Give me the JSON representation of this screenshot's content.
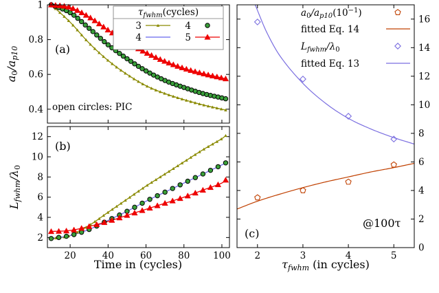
{
  "colors": {
    "olive": "#8a8a00",
    "blue": "#6666ee",
    "red": "#ee0000",
    "green_fill": "#3aa03a",
    "orange": "#c04000",
    "light_blue": "#7a6ee0"
  },
  "chart_data": [
    {
      "type": "line",
      "panel_label": "(a)",
      "xlabel": "",
      "ylabel": "a_0/a_p10",
      "ylabel_main": "a",
      "ylabel_sub1": "0",
      "ylabel_slash": "/a",
      "ylabel_sub2": "p10",
      "xlim": [
        8,
        104
      ],
      "ylim": [
        0.32,
        1.0
      ],
      "yticks": [
        "0.4",
        "0.6",
        "0.8",
        "1"
      ],
      "yticks_values": [
        0.4,
        0.6,
        0.8,
        1.0
      ],
      "annotation": "open circles: PIC",
      "legend_title": "τ",
      "legend_title_sub": "fwhm",
      "legend_title_rest": "(cycles)",
      "legend_position": "top-right",
      "series": [
        {
          "name": "3",
          "color": "olive",
          "marker": "triangle-small",
          "x": [
            10,
            20,
            30,
            40,
            50,
            60,
            70,
            80,
            90,
            100,
            102
          ],
          "y": [
            1.0,
            0.9,
            0.78,
            0.68,
            0.6,
            0.535,
            0.49,
            0.455,
            0.425,
            0.4,
            0.395
          ]
        },
        {
          "name": "4",
          "color": "blue",
          "marker": "none",
          "x": [
            10,
            20,
            30,
            40,
            50,
            60,
            70,
            80,
            90,
            100,
            102
          ],
          "y": [
            1.0,
            0.955,
            0.865,
            0.77,
            0.69,
            0.62,
            0.565,
            0.525,
            0.49,
            0.465,
            0.46
          ]
        },
        {
          "name": "4",
          "color": "green_fill",
          "marker": "circle",
          "x": [
            10,
            20,
            30,
            40,
            50,
            60,
            70,
            80,
            90,
            100,
            102
          ],
          "y": [
            1.0,
            0.955,
            0.865,
            0.77,
            0.69,
            0.62,
            0.565,
            0.525,
            0.49,
            0.465,
            0.46
          ]
        },
        {
          "name": "5",
          "color": "red",
          "marker": "triangle",
          "x": [
            10,
            20,
            30,
            40,
            50,
            60,
            70,
            80,
            90,
            100,
            102
          ],
          "y": [
            1.0,
            0.985,
            0.93,
            0.855,
            0.785,
            0.725,
            0.675,
            0.635,
            0.605,
            0.58,
            0.575
          ]
        }
      ]
    },
    {
      "type": "line",
      "panel_label": "(b)",
      "xlabel": "Time in (cycles)",
      "ylabel": "L_fwhm/λ_0",
      "ylabel_main": "L",
      "ylabel_sub1": "fwhm",
      "ylabel_slash": "/λ",
      "ylabel_sub2": "0",
      "xlim": [
        8,
        104
      ],
      "ylim": [
        1,
        13
      ],
      "xticks": [
        "20",
        "40",
        "60",
        "80",
        "100"
      ],
      "xticks_values": [
        20,
        40,
        60,
        80,
        100
      ],
      "yticks": [
        "2",
        "4",
        "6",
        "8",
        "10",
        "12"
      ],
      "yticks_values": [
        2,
        4,
        6,
        8,
        10,
        12
      ],
      "series": [
        {
          "name": "3",
          "color": "olive",
          "marker": "triangle-small",
          "x": [
            10,
            20,
            30,
            40,
            50,
            60,
            70,
            80,
            90,
            100,
            102
          ],
          "y": [
            1.9,
            2.2,
            3.2,
            4.5,
            5.8,
            7.1,
            8.3,
            9.5,
            10.7,
            11.8,
            12.1
          ]
        },
        {
          "name": "4",
          "color": "blue",
          "marker": "none",
          "x": [
            10,
            20,
            30,
            40,
            50,
            60,
            70,
            80,
            90,
            100,
            102
          ],
          "y": [
            1.9,
            2.2,
            2.8,
            3.7,
            4.6,
            5.6,
            6.5,
            7.4,
            8.3,
            9.2,
            9.4
          ]
        },
        {
          "name": "4",
          "color": "green_fill",
          "marker": "circle",
          "x": [
            10,
            20,
            30,
            40,
            50,
            60,
            70,
            80,
            90,
            100,
            102
          ],
          "y": [
            1.9,
            2.2,
            2.8,
            3.7,
            4.6,
            5.6,
            6.5,
            7.4,
            8.3,
            9.2,
            9.4
          ]
        },
        {
          "name": "5",
          "color": "red",
          "marker": "triangle",
          "x": [
            10,
            20,
            30,
            40,
            50,
            60,
            70,
            80,
            90,
            100,
            102
          ],
          "y": [
            2.6,
            2.7,
            3.1,
            3.6,
            4.2,
            4.8,
            5.4,
            6.0,
            6.7,
            7.4,
            7.7
          ]
        }
      ]
    },
    {
      "type": "scatter",
      "panel_label": "(c)",
      "annotation": "@100τ",
      "xlabel": "τ",
      "xlabel_sub": "fwhm",
      "xlabel_rest": " (in cycles)",
      "xlim": [
        1.55,
        5.45
      ],
      "ylim": [
        0,
        17
      ],
      "xticks": [
        "2",
        "3",
        "4",
        "5"
      ],
      "xticks_values": [
        2,
        3,
        4,
        5
      ],
      "yticks": [
        "0",
        "2",
        "4",
        "6",
        "8",
        "10",
        "12",
        "14",
        "16"
      ],
      "yticks_values": [
        0,
        2,
        4,
        6,
        8,
        10,
        12,
        14,
        16
      ],
      "y_axis_side": "right",
      "legend_position": "top-right",
      "series": [
        {
          "name": "a0/ap10(10−1)",
          "legend_main": "a",
          "legend_sub1": "0",
          "legend_slash": "/a",
          "legend_sub2": "p10",
          "legend_rest": "(10",
          "legend_sup": "−1",
          "legend_close": ")",
          "color": "orange",
          "marker": "pentagon",
          "x": [
            2,
            3,
            4,
            5
          ],
          "y": [
            3.5,
            4.0,
            4.6,
            5.8
          ]
        },
        {
          "name": "fitted Eq. 14",
          "color": "orange",
          "marker": "none",
          "x": [
            1.55,
            2,
            2.5,
            3,
            3.5,
            4,
            4.5,
            5,
            5.45
          ],
          "y": [
            2.7,
            3.25,
            3.75,
            4.2,
            4.6,
            4.95,
            5.3,
            5.6,
            5.9
          ]
        },
        {
          "name": "Lfwhm/λ0",
          "legend_main": "L",
          "legend_sub1": "fwhm",
          "legend_slash": "/λ",
          "legend_sub2": "0",
          "color": "light_blue",
          "marker": "diamond",
          "x": [
            2,
            3,
            4,
            5
          ],
          "y": [
            15.8,
            11.8,
            9.2,
            7.6
          ]
        },
        {
          "name": "fitted Eq. 13",
          "color": "light_blue",
          "marker": "none",
          "x": [
            1.95,
            2.2,
            2.5,
            3,
            3.5,
            4,
            4.5,
            5,
            5.45
          ],
          "y": [
            17.0,
            15.1,
            13.4,
            11.5,
            10.1,
            9.05,
            8.3,
            7.7,
            7.25
          ]
        }
      ]
    }
  ]
}
